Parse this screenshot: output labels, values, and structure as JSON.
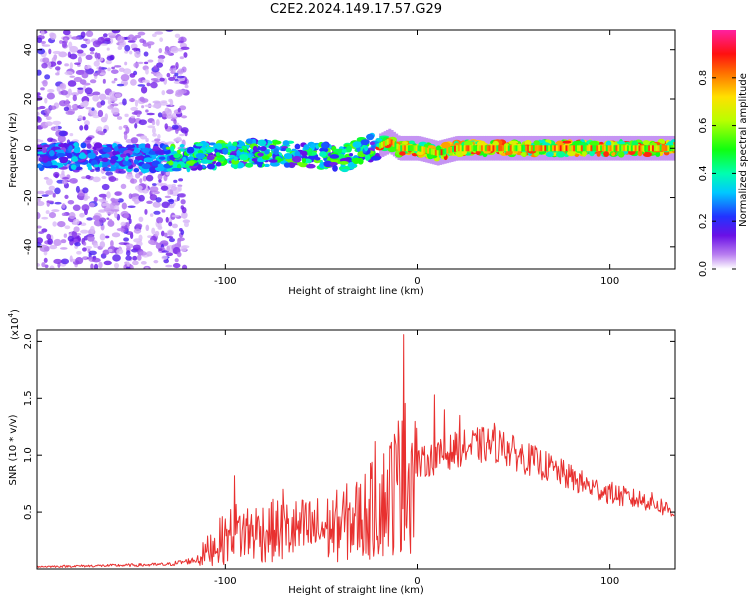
{
  "title": "C2E2.2024.149.17.57.G29",
  "colors": {
    "snr_line": "#e8302f",
    "axis": "#000000",
    "background": "#ffffff"
  },
  "chart_data": [
    {
      "type": "heatmap",
      "xlabel": "Height of straight line (km)",
      "ylabel": "Frequency (Hz)",
      "xlim": [
        -198,
        134
      ],
      "ylim": [
        -49,
        48
      ],
      "xticks": [
        -100,
        0,
        100
      ],
      "yticks": [
        -40,
        -20,
        0,
        20,
        40
      ],
      "colorbar": {
        "label": "Normalized spectral amplitude",
        "range": [
          0,
          1
        ],
        "ticks": [
          "0.0",
          "0.2",
          "0.4",
          "0.6",
          "0.8"
        ],
        "tick_values": [
          0.0,
          0.2,
          0.4,
          0.6,
          0.8
        ],
        "colormap": "rainbow-white-violet-blue-cyan-green-yellow-red-magenta"
      },
      "ridge": [
        {
          "x": -198,
          "y": -3
        },
        {
          "x": -150,
          "y": -4
        },
        {
          "x": -130,
          "y": -4
        },
        {
          "x": -110,
          "y": -3
        },
        {
          "x": -90,
          "y": -2
        },
        {
          "x": -70,
          "y": -2
        },
        {
          "x": -50,
          "y": -3
        },
        {
          "x": -40,
          "y": -5
        },
        {
          "x": -30,
          "y": -1
        },
        {
          "x": -20,
          "y": 1
        },
        {
          "x": -15,
          "y": 3
        },
        {
          "x": -10,
          "y": 0
        },
        {
          "x": 0,
          "y": 0
        },
        {
          "x": 10,
          "y": -2
        },
        {
          "x": 20,
          "y": 0
        },
        {
          "x": 60,
          "y": 0
        },
        {
          "x": 100,
          "y": 0
        },
        {
          "x": 134,
          "y": 0
        }
      ]
    },
    {
      "type": "line",
      "xlabel": "Height of straight line (km)",
      "ylabel": "SNR (10 * v/v)",
      "yscale_note": "(x10",
      "yscale_exp": "4",
      "xlim": [
        -198,
        134
      ],
      "ylim": [
        0,
        2.1
      ],
      "xticks": [
        -100,
        0,
        100
      ],
      "yticks": [
        0.5,
        1.0,
        1.5,
        2.0
      ],
      "ytick_labels": [
        "0.5",
        "1.0",
        "1.5",
        "2.0"
      ],
      "envelope": [
        {
          "x": -198,
          "y": 0.02
        },
        {
          "x": -160,
          "y": 0.03
        },
        {
          "x": -130,
          "y": 0.04
        },
        {
          "x": -115,
          "y": 0.08
        },
        {
          "x": -105,
          "y": 0.22
        },
        {
          "x": -95,
          "y": 0.32
        },
        {
          "x": -80,
          "y": 0.33
        },
        {
          "x": -60,
          "y": 0.34
        },
        {
          "x": -45,
          "y": 0.36
        },
        {
          "x": -30,
          "y": 0.45
        },
        {
          "x": -20,
          "y": 0.55
        },
        {
          "x": -10,
          "y": 0.75
        },
        {
          "x": -5,
          "y": 0.85
        },
        {
          "x": 0,
          "y": 0.92
        },
        {
          "x": 10,
          "y": 0.98
        },
        {
          "x": 20,
          "y": 1.05
        },
        {
          "x": 30,
          "y": 1.08
        },
        {
          "x": 40,
          "y": 1.1
        },
        {
          "x": 50,
          "y": 1.02
        },
        {
          "x": 60,
          "y": 0.95
        },
        {
          "x": 70,
          "y": 0.88
        },
        {
          "x": 80,
          "y": 0.8
        },
        {
          "x": 90,
          "y": 0.72
        },
        {
          "x": 100,
          "y": 0.67
        },
        {
          "x": 110,
          "y": 0.62
        },
        {
          "x": 120,
          "y": 0.6
        },
        {
          "x": 134,
          "y": 0.5
        }
      ],
      "spikes": [
        {
          "x": -7,
          "y": 2.06
        },
        {
          "x": -8,
          "y": 1.3
        },
        {
          "x": 9,
          "y": 1.53
        },
        {
          "x": 14,
          "y": 1.4
        },
        {
          "x": 22,
          "y": 1.35
        },
        {
          "x": -22,
          "y": 1.12
        },
        {
          "x": -95,
          "y": 0.82
        },
        {
          "x": -70,
          "y": 0.7
        },
        {
          "x": 40,
          "y": 1.28
        },
        {
          "x": 45,
          "y": 1.2
        }
      ]
    }
  ]
}
